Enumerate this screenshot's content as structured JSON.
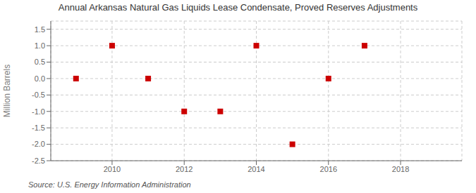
{
  "chart_data": {
    "type": "scatter",
    "title": "Annual Arkansas Natural Gas Liquids Lease Condensate, Proved Reserves Adjustments",
    "y_label": "Million Barrels",
    "annotations": [
      "Source: U.S. Energy Information Administration"
    ],
    "x": [
      2009,
      2010,
      2011,
      2012,
      2013,
      2014,
      2015,
      2016,
      2017
    ],
    "values": [
      0.0,
      1.0,
      0.0,
      -1.0,
      -1.0,
      1.0,
      -2.0,
      0.0,
      1.0
    ],
    "color": "#cc0000",
    "marker": "square",
    "xlim": [
      2008.3,
      2019.7
    ],
    "ylim": [
      -2.5,
      1.75
    ],
    "xticks": [
      2010,
      2012,
      2014,
      2016,
      2018
    ],
    "yticks": [
      -2.5,
      {
        "value": -2.0,
        "label": "-2.0"
      },
      -1.5,
      {
        "value": -1.0,
        "label": "-1.0"
      },
      -0.5,
      {
        "value": 0.0,
        "label": "0.0"
      },
      0.5,
      {
        "value": 1.0,
        "label": "1.0"
      },
      1.5
    ],
    "grid": true
  }
}
